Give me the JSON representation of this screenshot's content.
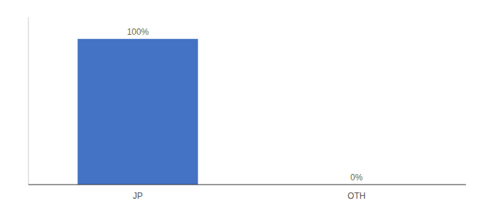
{
  "chart_data": {
    "type": "bar",
    "categories": [
      "JP",
      "OTH"
    ],
    "values": [
      100,
      0
    ],
    "value_labels": [
      "100%",
      "0%"
    ],
    "color": "#4472c4",
    "ylim": [
      0,
      115
    ],
    "data_labels": true,
    "tick_labels": "x",
    "grid": false
  }
}
